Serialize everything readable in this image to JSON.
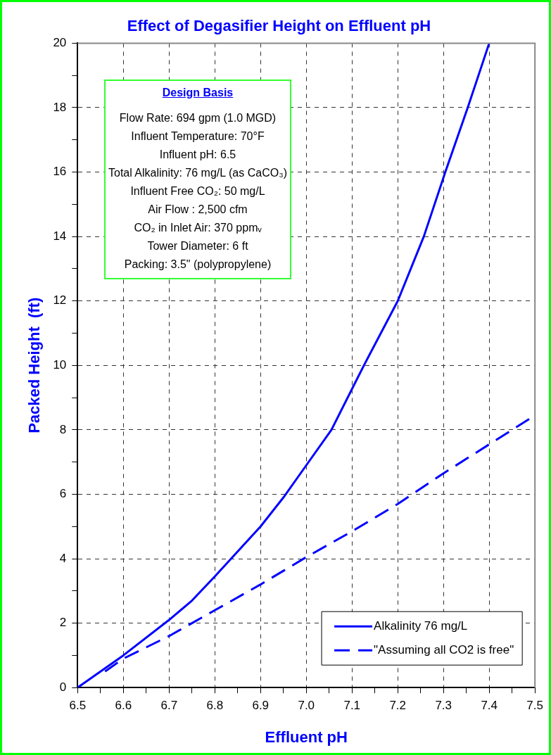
{
  "chart_data": {
    "type": "line",
    "title": "Effect of Degasifier Height on Effluent pH",
    "xlabel": "Effluent pH",
    "ylabel": "Packed Height  (ft)",
    "xlim": [
      6.5,
      7.5
    ],
    "ylim": [
      0,
      20
    ],
    "xticks": [
      6.5,
      {
        "value": 6.55,
        "label": null
      },
      6.6,
      {
        "value": 6.65,
        "label": null
      },
      6.7,
      {
        "value": 6.75,
        "label": null
      },
      6.8,
      {
        "value": 6.85,
        "label": null
      },
      6.9,
      {
        "value": 6.95,
        "label": null
      },
      {
        "value": 7.0,
        "label": "7.0"
      },
      {
        "value": 7.05,
        "label": null
      },
      7.1,
      {
        "value": 7.15,
        "label": null
      },
      7.2,
      {
        "value": 7.25,
        "label": null
      },
      7.3,
      {
        "value": 7.35,
        "label": null
      },
      7.4,
      {
        "value": 7.45,
        "label": null
      },
      7.5
    ],
    "yticks": [
      0,
      {
        "value": 1,
        "label": null
      },
      2,
      {
        "value": 3,
        "label": null
      },
      4,
      {
        "value": 5,
        "label": null
      },
      6,
      {
        "value": 7,
        "label": null
      },
      8,
      {
        "value": 9,
        "label": null
      },
      10,
      {
        "value": 11,
        "label": null
      },
      12,
      {
        "value": 13,
        "label": null
      },
      14,
      {
        "value": 15,
        "label": null
      },
      16,
      {
        "value": 17,
        "label": null
      },
      18,
      {
        "value": 19,
        "label": null
      },
      20
    ],
    "grid": true,
    "legend": "bottom right",
    "marker": "none",
    "series": [
      {
        "name": "Alkalinity 76 mg/L",
        "color": "#0000ff",
        "line_style": "solid",
        "x": [
          6.5,
          6.6,
          6.7,
          6.75,
          6.8,
          6.9,
          6.95,
          7.0,
          7.055,
          7.126,
          7.2,
          7.257,
          7.304,
          7.353,
          7.4
        ],
        "values": [
          0,
          1.0,
          2.1,
          2.7,
          3.45,
          5.0,
          5.9,
          6.9,
          8,
          10,
          12,
          14,
          16,
          18,
          20
        ]
      },
      {
        "name": "\"Assuming all CO2 is free\"",
        "color": "#0000ff",
        "line_style": "dashed",
        "x": [
          6.56,
          6.6,
          6.7,
          6.75,
          6.8,
          6.9,
          7.0,
          7.1,
          7.2,
          7.3,
          7.4,
          7.5
        ],
        "values": [
          0.5,
          0.9,
          1.6,
          2.0,
          2.4,
          3.2,
          4.05,
          4.85,
          5.7,
          6.65,
          7.55,
          8.45
        ]
      }
    ],
    "annotations": [
      "Design Basis",
      "Flow  Rate:  694 gpm (1.0 MGD)",
      "Influent Temperature: 70°F",
      "Influent pH: 6.5",
      "Total Alkalinity: 76 mg/L (as CaCO₃)",
      "Influent Free CO₂: 50 mg/L",
      "Air Flow : 2,500 cfm",
      "CO₂ in Inlet Air: 370 ppmᵥ",
      "Tower Diameter: 6 ft",
      "Packing: 3.5\" (polypropylene)"
    ]
  }
}
